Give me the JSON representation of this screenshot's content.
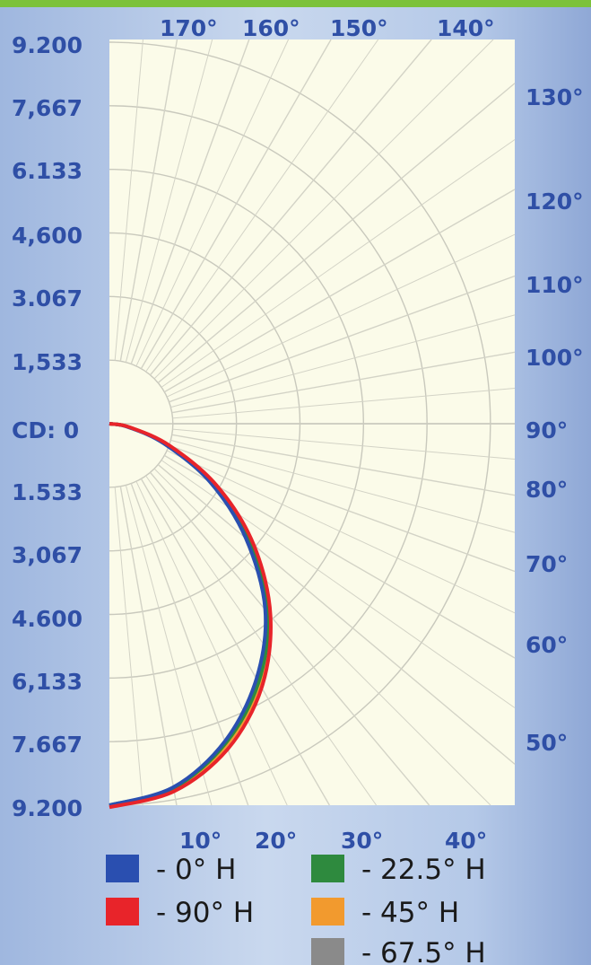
{
  "chart_data": {
    "type": "line",
    "subtype": "polar-candela",
    "radial_unit_label": "CD: 0",
    "radial_max": 9200,
    "left_axis_labels": [
      "9.200",
      "7,667",
      "6.133",
      "4,600",
      "3.067",
      "1,533",
      "CD: 0",
      "1.533",
      "3,067",
      "4.600",
      "6,133",
      "7.667",
      "9.200"
    ],
    "top_angle_labels": [
      "170°",
      "160°",
      "150°",
      "140°"
    ],
    "right_angle_labels": [
      "130°",
      "120°",
      "110°",
      "100°",
      "90°",
      "80°",
      "70°",
      "60°",
      "50°"
    ],
    "bottom_angle_labels": [
      "10°",
      "20°",
      "30°",
      "40°"
    ],
    "angles_deg": [
      0,
      10,
      20,
      30,
      40,
      50,
      60,
      70,
      80,
      90
    ],
    "series": [
      {
        "name": "- 0° H",
        "color": "#2a4fb0",
        "values": [
          9200,
          8900,
          8150,
          7100,
          5850,
          4300,
          2800,
          1400,
          450,
          0
        ]
      },
      {
        "name": "- 90° H",
        "color": "#e8242a",
        "values": [
          9250,
          9000,
          8350,
          7350,
          6050,
          4550,
          3000,
          1550,
          500,
          0
        ]
      },
      {
        "name": "- 22.5° H",
        "color": "#2e8a3e",
        "values": [
          9200,
          8920,
          8200,
          7200,
          5950,
          4450,
          2920,
          1480,
          470,
          0
        ]
      },
      {
        "name": "- 45° H",
        "color": "#f29a2e",
        "values": [
          9220,
          8950,
          8250,
          7250,
          6000,
          4500,
          2960,
          1500,
          480,
          0
        ]
      },
      {
        "name": "- 67.5° H",
        "color": "#8a8a8a",
        "values": [
          9210,
          8930,
          8220,
          7220,
          5970,
          4470,
          2940,
          1490,
          475,
          0
        ]
      }
    ],
    "grid": true
  },
  "legend_order": [
    0,
    2,
    1,
    3,
    4
  ]
}
